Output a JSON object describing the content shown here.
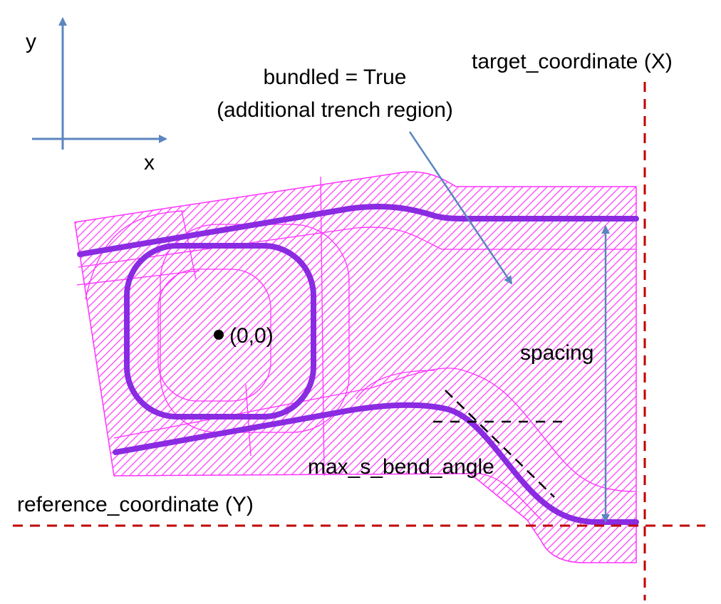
{
  "axes": {
    "x_label": "x",
    "y_label": "y"
  },
  "labels": {
    "target_coordinate": "target_coordinate (X)",
    "bundled_line1": "bundled = True",
    "bundled_line2": "(additional trench region)",
    "origin": "(0,0)",
    "spacing": "spacing",
    "max_s_bend_angle": "max_s_bend_angle",
    "reference_coordinate": "reference_coordinate (Y)"
  },
  "colors": {
    "trench_fill": "#ff33ff",
    "waveguide": "#8a2be2",
    "axis_arrow": "#5b86c0",
    "guide_line": "#c00000"
  }
}
